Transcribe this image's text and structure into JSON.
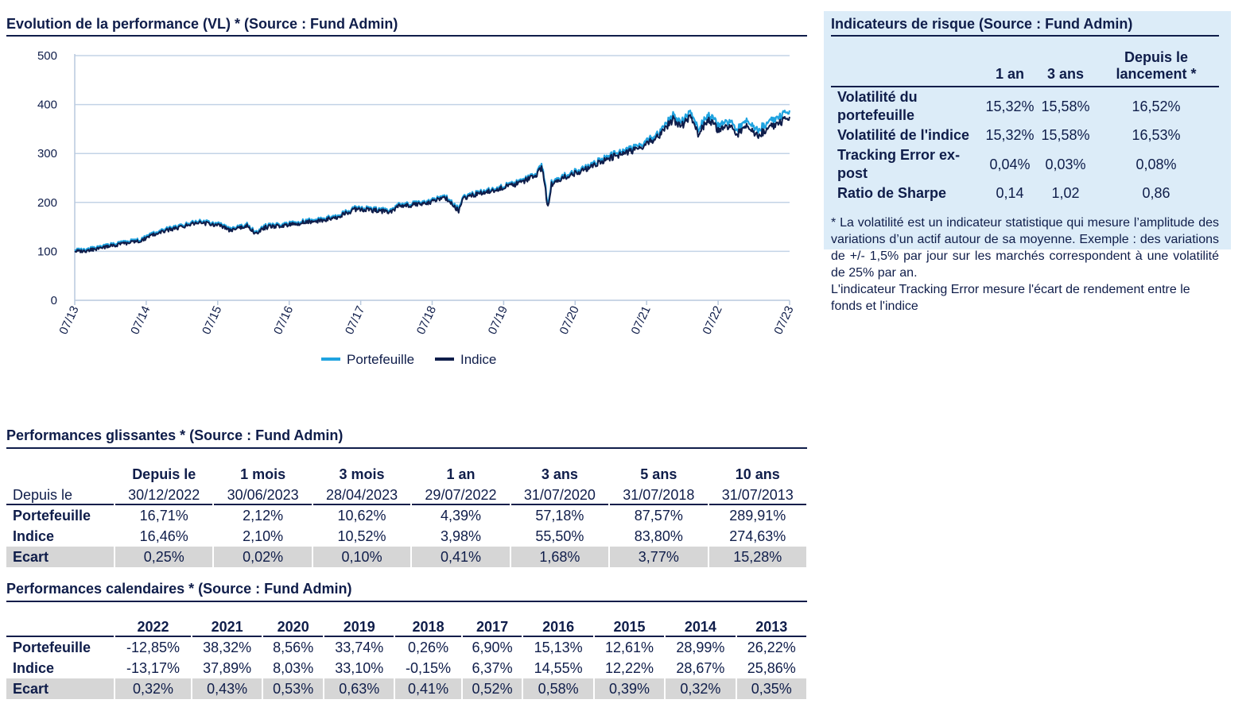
{
  "performance_section": {
    "title": "Evolution de la performance (VL) * (Source : Fund Admin)"
  },
  "chart_data": {
    "type": "line",
    "title": "",
    "xlabel": "",
    "ylabel": "",
    "ylim": [
      0,
      500
    ],
    "yticks": [
      0,
      100,
      200,
      300,
      400,
      500
    ],
    "xlim": [
      2013.58,
      2023.58
    ],
    "xticks": [
      {
        "value": 2013.58,
        "label": "07/13"
      },
      {
        "value": 2014.58,
        "label": "07/14"
      },
      {
        "value": 2015.58,
        "label": "07/15"
      },
      {
        "value": 2016.58,
        "label": "07/16"
      },
      {
        "value": 2017.58,
        "label": "07/17"
      },
      {
        "value": 2018.58,
        "label": "07/18"
      },
      {
        "value": 2019.58,
        "label": "07/19"
      },
      {
        "value": 2020.58,
        "label": "07/20"
      },
      {
        "value": 2021.58,
        "label": "07/21"
      },
      {
        "value": 2022.58,
        "label": "07/22"
      },
      {
        "value": 2023.58,
        "label": "07/23"
      }
    ],
    "grid": "horizontal",
    "legend_position": "bottom-center",
    "series": [
      {
        "name": "Portefeuille",
        "color": "#1fa3e0",
        "x": [
          2013.58,
          2013.75,
          2014.0,
          2014.25,
          2014.5,
          2014.75,
          2015.0,
          2015.25,
          2015.42,
          2015.58,
          2015.75,
          2016.0,
          2016.1,
          2016.25,
          2016.5,
          2016.75,
          2017.0,
          2017.25,
          2017.5,
          2017.75,
          2018.0,
          2018.1,
          2018.25,
          2018.5,
          2018.75,
          2018.95,
          2019.0,
          2019.25,
          2019.5,
          2019.75,
          2020.0,
          2020.12,
          2020.2,
          2020.25,
          2020.5,
          2020.75,
          2021.0,
          2021.25,
          2021.5,
          2021.75,
          2021.95,
          2022.05,
          2022.2,
          2022.3,
          2022.45,
          2022.58,
          2022.75,
          2022.85,
          2023.0,
          2023.1,
          2023.25,
          2023.4,
          2023.58
        ],
        "y": [
          103,
          104,
          112,
          118,
          125,
          142,
          150,
          161,
          160,
          157,
          146,
          156,
          139,
          152,
          156,
          161,
          166,
          172,
          189,
          187,
          183,
          196,
          197,
          201,
          214,
          187,
          210,
          222,
          231,
          240,
          255,
          275,
          195,
          240,
          260,
          272,
          292,
          305,
          318,
          342,
          378,
          362,
          383,
          350,
          380,
          358,
          365,
          350,
          368,
          345,
          360,
          372,
          388
        ]
      },
      {
        "name": "Indice",
        "color": "#0f1d4a",
        "x": [
          2013.58,
          2013.75,
          2014.0,
          2014.25,
          2014.5,
          2014.75,
          2015.0,
          2015.25,
          2015.42,
          2015.58,
          2015.75,
          2016.0,
          2016.1,
          2016.25,
          2016.5,
          2016.75,
          2017.0,
          2017.25,
          2017.5,
          2017.75,
          2018.0,
          2018.1,
          2018.25,
          2018.5,
          2018.75,
          2018.95,
          2019.0,
          2019.25,
          2019.5,
          2019.75,
          2020.0,
          2020.12,
          2020.2,
          2020.25,
          2020.5,
          2020.75,
          2021.0,
          2021.25,
          2021.5,
          2021.75,
          2021.95,
          2022.05,
          2022.2,
          2022.3,
          2022.45,
          2022.58,
          2022.75,
          2022.85,
          2023.0,
          2023.1,
          2023.25,
          2023.4,
          2023.58
        ],
        "y": [
          100,
          101,
          109,
          115,
          122,
          139,
          147,
          158,
          157,
          154,
          143,
          153,
          136,
          149,
          153,
          158,
          163,
          169,
          186,
          184,
          180,
          193,
          194,
          198,
          211,
          183,
          207,
          219,
          228,
          237,
          252,
          270,
          188,
          236,
          256,
          268,
          287,
          300,
          312,
          336,
          370,
          354,
          374,
          340,
          370,
          348,
          355,
          340,
          357,
          334,
          348,
          360,
          375
        ]
      }
    ]
  },
  "risk": {
    "title": "Indicateurs de risque (Source : Fund Admin)",
    "columns": [
      "1 an",
      "3 ans",
      "Depuis le lancement *"
    ],
    "rows": [
      {
        "label": "Volatilité du portefeuille",
        "values": [
          "15,32%",
          "15,58%",
          "16,52%"
        ]
      },
      {
        "label": "Volatilité de l'indice",
        "values": [
          "15,32%",
          "15,58%",
          "16,53%"
        ]
      },
      {
        "label": "Tracking Error ex-post",
        "values": [
          "0,04%",
          "0,03%",
          "0,08%"
        ]
      },
      {
        "label": "Ratio de Sharpe",
        "values": [
          "0,14",
          "1,02",
          "0,86"
        ]
      }
    ],
    "note_1": "* La volatilité est un indicateur statistique qui mesure l’amplitude des variations d’un actif autour de sa moyenne. Exemple : des variations de +/- 1,5% par jour sur les marchés correspondent à une volatilité de 25% par an.",
    "note_2": "L'indicateur Tracking Error mesure l'écart de rendement entre le fonds et l'indice"
  },
  "glissantes": {
    "title": "Performances glissantes * (Source : Fund Admin)",
    "corner": "Depuis le",
    "columns": [
      {
        "label": "Depuis le",
        "date": "30/12/2022"
      },
      {
        "label": "1 mois",
        "date": "30/06/2023"
      },
      {
        "label": "3 mois",
        "date": "28/04/2023"
      },
      {
        "label": "1 an",
        "date": "29/07/2022"
      },
      {
        "label": "3 ans",
        "date": "31/07/2020"
      },
      {
        "label": "5 ans",
        "date": "31/07/2018"
      },
      {
        "label": "10 ans",
        "date": "31/07/2013"
      }
    ],
    "rows": [
      {
        "label": "Portefeuille",
        "values": [
          "16,71%",
          "2,12%",
          "10,62%",
          "4,39%",
          "57,18%",
          "87,57%",
          "289,91%"
        ]
      },
      {
        "label": "Indice",
        "values": [
          "16,46%",
          "2,10%",
          "10,52%",
          "3,98%",
          "55,50%",
          "83,80%",
          "274,63%"
        ]
      },
      {
        "label": "Ecart",
        "values": [
          "0,25%",
          "0,02%",
          "0,10%",
          "0,41%",
          "1,68%",
          "3,77%",
          "15,28%"
        ]
      }
    ]
  },
  "calendaires": {
    "title": "Performances calendaires * (Source : Fund Admin)",
    "columns": [
      "2022",
      "2021",
      "2020",
      "2019",
      "2018",
      "2017",
      "2016",
      "2015",
      "2014",
      "2013"
    ],
    "rows": [
      {
        "label": "Portefeuille",
        "values": [
          "-12,85%",
          "38,32%",
          "8,56%",
          "33,74%",
          "0,26%",
          "6,90%",
          "15,13%",
          "12,61%",
          "28,99%",
          "26,22%"
        ]
      },
      {
        "label": "Indice",
        "values": [
          "-13,17%",
          "37,89%",
          "8,03%",
          "33,10%",
          "-0,15%",
          "6,37%",
          "14,55%",
          "12,22%",
          "28,67%",
          "25,86%"
        ]
      },
      {
        "label": "Ecart",
        "values": [
          "0,32%",
          "0,43%",
          "0,53%",
          "0,63%",
          "0,41%",
          "0,52%",
          "0,58%",
          "0,39%",
          "0,32%",
          "0,35%"
        ]
      }
    ]
  }
}
